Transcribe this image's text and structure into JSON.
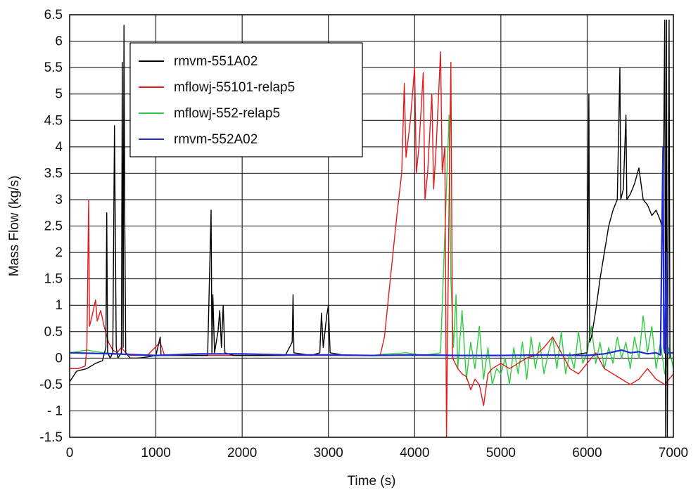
{
  "chart_data": {
    "type": "line",
    "title": "",
    "xlabel": "Time (s)",
    "ylabel": "Mass Flow (kg/s)",
    "xlim": [
      0,
      7000
    ],
    "ylim": [
      -1.5,
      6.5
    ],
    "xticks": [
      0,
      1000,
      2000,
      3000,
      4000,
      5000,
      6000,
      7000
    ],
    "xtick_labels": [
      "0",
      "1000",
      "2000",
      "3000",
      "4000",
      "5000",
      "6000",
      "7000"
    ],
    "yticks": [
      -1.5,
      -1,
      -0.5,
      0,
      0.5,
      1,
      1.5,
      2,
      2.5,
      3,
      3.5,
      4,
      4.5,
      5,
      5.5,
      6,
      6.5
    ],
    "ytick_labels": [
      "-1.5",
      "- 1",
      "-0.5",
      "0",
      "0.5",
      "1",
      "1.5",
      "2",
      "2.5",
      "3",
      "3.5",
      "4",
      "4.5",
      "5",
      "5.5",
      "6",
      "6.5"
    ],
    "grid": true,
    "legend_position": "top-left",
    "series": [
      {
        "name": "rmvm-551A02",
        "color": "#000000",
        "points": [
          [
            0,
            -0.45
          ],
          [
            80,
            -0.25
          ],
          [
            200,
            -0.2
          ],
          [
            300,
            -0.1
          ],
          [
            380,
            -0.05
          ],
          [
            420,
            0.2
          ],
          [
            430,
            2.75
          ],
          [
            440,
            0.1
          ],
          [
            470,
            0.0
          ],
          [
            500,
            0.1
          ],
          [
            520,
            4.4
          ],
          [
            540,
            0.2
          ],
          [
            560,
            0.0
          ],
          [
            600,
            0.1
          ],
          [
            610,
            5.6
          ],
          [
            620,
            0.2
          ],
          [
            630,
            6.3
          ],
          [
            640,
            2.5
          ],
          [
            650,
            0.1
          ],
          [
            700,
            0.0
          ],
          [
            800,
            0.0
          ],
          [
            900,
            0.02
          ],
          [
            1000,
            0.05
          ],
          [
            1050,
            0.4
          ],
          [
            1060,
            0.05
          ],
          [
            1200,
            0.05
          ],
          [
            1400,
            0.05
          ],
          [
            1600,
            0.05
          ],
          [
            1640,
            2.8
          ],
          [
            1650,
            0.1
          ],
          [
            1660,
            1.2
          ],
          [
            1680,
            0.1
          ],
          [
            1720,
            0.5
          ],
          [
            1740,
            0.9
          ],
          [
            1760,
            0.2
          ],
          [
            1780,
            1.0
          ],
          [
            1800,
            0.1
          ],
          [
            1900,
            0.05
          ],
          [
            2100,
            0.05
          ],
          [
            2300,
            0.05
          ],
          [
            2500,
            0.05
          ],
          [
            2580,
            0.3
          ],
          [
            2590,
            1.2
          ],
          [
            2600,
            0.1
          ],
          [
            2800,
            0.05
          ],
          [
            2900,
            0.1
          ],
          [
            2920,
            0.85
          ],
          [
            2940,
            0.2
          ],
          [
            2980,
            0.8
          ],
          [
            3000,
            1.0
          ],
          [
            3020,
            0.1
          ],
          [
            3200,
            0.05
          ],
          [
            3400,
            0.05
          ],
          [
            3600,
            0.05
          ],
          [
            3800,
            0.05
          ],
          [
            4000,
            0.05
          ],
          [
            4200,
            0.05
          ],
          [
            4400,
            0.05
          ],
          [
            4600,
            0.05
          ],
          [
            4800,
            0.05
          ],
          [
            5000,
            0.05
          ],
          [
            5200,
            0.05
          ],
          [
            5400,
            0.05
          ],
          [
            5600,
            0.05
          ],
          [
            5800,
            0.05
          ],
          [
            6000,
            0.1
          ],
          [
            6020,
            5.0
          ],
          [
            6030,
            0.3
          ],
          [
            6050,
            0.4
          ],
          [
            6100,
            0.9
          ],
          [
            6150,
            1.5
          ],
          [
            6200,
            2.0
          ],
          [
            6250,
            2.5
          ],
          [
            6300,
            2.8
          ],
          [
            6350,
            3.0
          ],
          [
            6380,
            5.5
          ],
          [
            6390,
            3.0
          ],
          [
            6420,
            3.2
          ],
          [
            6450,
            4.6
          ],
          [
            6460,
            3.0
          ],
          [
            6500,
            3.1
          ],
          [
            6550,
            3.3
          ],
          [
            6600,
            3.6
          ],
          [
            6650,
            3.0
          ],
          [
            6700,
            2.9
          ],
          [
            6750,
            2.7
          ],
          [
            6800,
            2.8
          ],
          [
            6850,
            2.6
          ],
          [
            6880,
            2.4
          ],
          [
            6900,
            6.4
          ],
          [
            6910,
            -1.5
          ],
          [
            6920,
            6.4
          ],
          [
            6930,
            -1.5
          ],
          [
            6950,
            6.4
          ],
          [
            6960,
            0.0
          ]
        ]
      },
      {
        "name": "mflowj-55101-relap5",
        "color": "#e41a1c",
        "points": [
          [
            0,
            -0.2
          ],
          [
            100,
            -0.2
          ],
          [
            180,
            -0.15
          ],
          [
            200,
            0.2
          ],
          [
            220,
            3.0
          ],
          [
            230,
            0.6
          ],
          [
            260,
            0.8
          ],
          [
            300,
            1.1
          ],
          [
            320,
            0.7
          ],
          [
            360,
            0.9
          ],
          [
            400,
            0.6
          ],
          [
            450,
            0.3
          ],
          [
            500,
            0.15
          ],
          [
            550,
            0.1
          ],
          [
            600,
            0.2
          ],
          [
            650,
            0.1
          ],
          [
            700,
            0.05
          ],
          [
            900,
            0.05
          ],
          [
            1050,
            0.3
          ],
          [
            1100,
            0.05
          ],
          [
            1500,
            0.05
          ],
          [
            2000,
            0.05
          ],
          [
            2500,
            0.05
          ],
          [
            3000,
            0.05
          ],
          [
            3500,
            0.05
          ],
          [
            3600,
            0.05
          ],
          [
            3650,
            0.4
          ],
          [
            3700,
            1.2
          ],
          [
            3750,
            2.0
          ],
          [
            3800,
            2.8
          ],
          [
            3850,
            3.5
          ],
          [
            3880,
            5.2
          ],
          [
            3900,
            3.8
          ],
          [
            3950,
            4.5
          ],
          [
            4000,
            5.5
          ],
          [
            4020,
            3.5
          ],
          [
            4050,
            4.0
          ],
          [
            4100,
            5.4
          ],
          [
            4120,
            3.0
          ],
          [
            4150,
            3.5
          ],
          [
            4200,
            5.0
          ],
          [
            4220,
            3.2
          ],
          [
            4250,
            4.0
          ],
          [
            4300,
            5.8
          ],
          [
            4320,
            3.5
          ],
          [
            4350,
            4.0
          ],
          [
            4370,
            -1.5
          ],
          [
            4380,
            0.2
          ],
          [
            4400,
            3.0
          ],
          [
            4420,
            5.6
          ],
          [
            4440,
            0.0
          ],
          [
            4500,
            -0.2
          ],
          [
            4550,
            -0.3
          ],
          [
            4600,
            -0.35
          ],
          [
            4650,
            -0.6
          ],
          [
            4700,
            -0.4
          ],
          [
            4750,
            -0.5
          ],
          [
            4800,
            -0.9
          ],
          [
            4850,
            -0.3
          ],
          [
            4900,
            -0.2
          ],
          [
            5000,
            -0.1
          ],
          [
            5100,
            -0.2
          ],
          [
            5200,
            -0.1
          ],
          [
            5300,
            0.0
          ],
          [
            5400,
            0.05
          ],
          [
            5500,
            0.2
          ],
          [
            5600,
            0.4
          ],
          [
            5700,
            0.1
          ],
          [
            5800,
            -0.2
          ],
          [
            5900,
            -0.3
          ],
          [
            6000,
            -0.1
          ],
          [
            6100,
            0.1
          ],
          [
            6200,
            -0.2
          ],
          [
            6300,
            -0.3
          ],
          [
            6400,
            -0.4
          ],
          [
            6500,
            -0.5
          ],
          [
            6600,
            -0.4
          ],
          [
            6700,
            -0.2
          ],
          [
            6800,
            -0.4
          ],
          [
            6900,
            -0.5
          ],
          [
            7000,
            -0.3
          ]
        ]
      },
      {
        "name": "mflowj-552-relap5",
        "color": "#2ecc40",
        "points": [
          [
            0,
            0.1
          ],
          [
            200,
            0.15
          ],
          [
            400,
            0.1
          ],
          [
            600,
            0.08
          ],
          [
            800,
            0.05
          ],
          [
            1000,
            0.05
          ],
          [
            1500,
            0.05
          ],
          [
            2000,
            0.05
          ],
          [
            2500,
            0.05
          ],
          [
            3000,
            0.05
          ],
          [
            3500,
            0.05
          ],
          [
            3700,
            0.08
          ],
          [
            3900,
            0.1
          ],
          [
            4100,
            0.05
          ],
          [
            4300,
            0.1
          ],
          [
            4400,
            4.6
          ],
          [
            4420,
            1.5
          ],
          [
            4450,
            0.2
          ],
          [
            4480,
            1.2
          ],
          [
            4500,
            -0.2
          ],
          [
            4550,
            0.9
          ],
          [
            4600,
            -0.4
          ],
          [
            4650,
            0.3
          ],
          [
            4700,
            -0.2
          ],
          [
            4750,
            0.6
          ],
          [
            4800,
            -0.4
          ],
          [
            4850,
            0.2
          ],
          [
            4900,
            -0.5
          ],
          [
            4950,
            -0.2
          ],
          [
            5000,
            -0.3
          ],
          [
            5050,
            0.0
          ],
          [
            5100,
            -0.5
          ],
          [
            5150,
            0.2
          ],
          [
            5200,
            -0.3
          ],
          [
            5250,
            0.3
          ],
          [
            5300,
            -0.4
          ],
          [
            5350,
            0.4
          ],
          [
            5400,
            -0.2
          ],
          [
            5450,
            0.3
          ],
          [
            5500,
            -0.3
          ],
          [
            5550,
            0.1
          ],
          [
            5600,
            0.4
          ],
          [
            5650,
            -0.2
          ],
          [
            5700,
            0.5
          ],
          [
            5750,
            -0.3
          ],
          [
            5800,
            0.1
          ],
          [
            5850,
            -0.2
          ],
          [
            5900,
            0.5
          ],
          [
            5950,
            -0.1
          ],
          [
            6000,
            0.1
          ],
          [
            6050,
            0.6
          ],
          [
            6100,
            -0.1
          ],
          [
            6150,
            0.3
          ],
          [
            6200,
            -0.2
          ],
          [
            6250,
            0.2
          ],
          [
            6300,
            -0.1
          ],
          [
            6350,
            0.4
          ],
          [
            6400,
            0.0
          ],
          [
            6450,
            0.3
          ],
          [
            6500,
            -0.2
          ],
          [
            6550,
            0.4
          ],
          [
            6600,
            0.0
          ],
          [
            6650,
            0.8
          ],
          [
            6700,
            0.1
          ],
          [
            6750,
            0.6
          ],
          [
            6800,
            -0.2
          ],
          [
            6850,
            0.3
          ],
          [
            6900,
            -0.3
          ],
          [
            6950,
            0.2
          ],
          [
            7000,
            -0.2
          ]
        ]
      },
      {
        "name": "rmvm-552A02",
        "color": "#1f2ccf",
        "points": [
          [
            0,
            0.1
          ],
          [
            500,
            0.08
          ],
          [
            1000,
            0.05
          ],
          [
            1500,
            0.08
          ],
          [
            2000,
            0.08
          ],
          [
            2500,
            0.06
          ],
          [
            3000,
            0.06
          ],
          [
            3500,
            0.05
          ],
          [
            4000,
            0.06
          ],
          [
            4500,
            0.05
          ],
          [
            5000,
            0.05
          ],
          [
            5500,
            0.06
          ],
          [
            6000,
            0.05
          ],
          [
            6200,
            0.08
          ],
          [
            6400,
            0.15
          ],
          [
            6500,
            0.1
          ],
          [
            6600,
            0.12
          ],
          [
            6700,
            0.08
          ],
          [
            6800,
            0.1
          ],
          [
            6850,
            0.06
          ],
          [
            6880,
            4.0
          ],
          [
            6890,
            0.2
          ],
          [
            6900,
            0.1
          ],
          [
            6920,
            2.0
          ],
          [
            6930,
            0.1
          ],
          [
            7000,
            0.1
          ]
        ]
      }
    ]
  }
}
